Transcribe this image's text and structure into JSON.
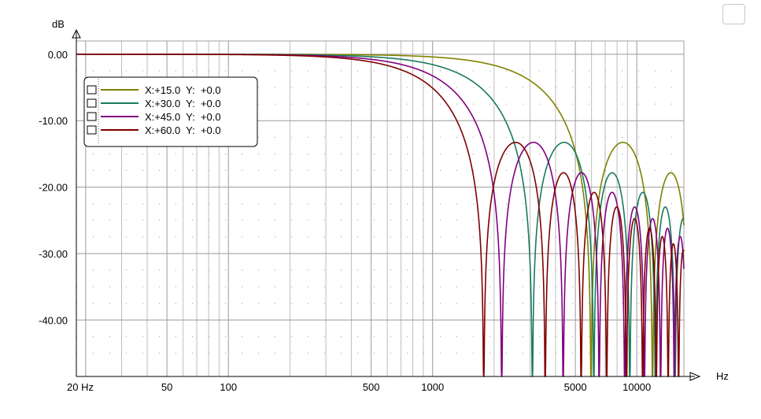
{
  "chart_data": {
    "type": "line",
    "xlabel": "Hz",
    "ylabel": "dB",
    "x_scale": "log",
    "xlim": [
      18,
      17000
    ],
    "ylim": [
      -48.5,
      2
    ],
    "x_ticks": [
      {
        "value": 20,
        "label": "20 Hz"
      },
      {
        "value": 50,
        "label": "50"
      },
      {
        "value": 100,
        "label": "100"
      },
      {
        "value": 500,
        "label": "500"
      },
      {
        "value": 1000,
        "label": "1000"
      },
      {
        "value": 5000,
        "label": "5000"
      },
      {
        "value": 10000,
        "label": "10000"
      }
    ],
    "y_ticks": [
      {
        "value": 0,
        "label": "0.00"
      },
      {
        "value": -10,
        "label": "-10.00"
      },
      {
        "value": -20,
        "label": "-20.00"
      },
      {
        "value": -30,
        "label": "-30.00"
      },
      {
        "value": -40,
        "label": "-40.00"
      }
    ],
    "grid": true,
    "legend_position": "top-left",
    "series": [
      {
        "name": "X:+15.0  Y:  +0.0",
        "color": "#808000",
        "first_null_hz": 5970
      },
      {
        "name": "X:+30.0  Y:  +0.0",
        "color": "#1a7a5e",
        "first_null_hz": 3080
      },
      {
        "name": "X:+45.0  Y:  +0.0",
        "color": "#800080",
        "first_null_hz": 2180
      },
      {
        "name": "X:+60.0  Y:  +0.0",
        "color": "#800000",
        "first_null_hz": 1780
      }
    ]
  }
}
